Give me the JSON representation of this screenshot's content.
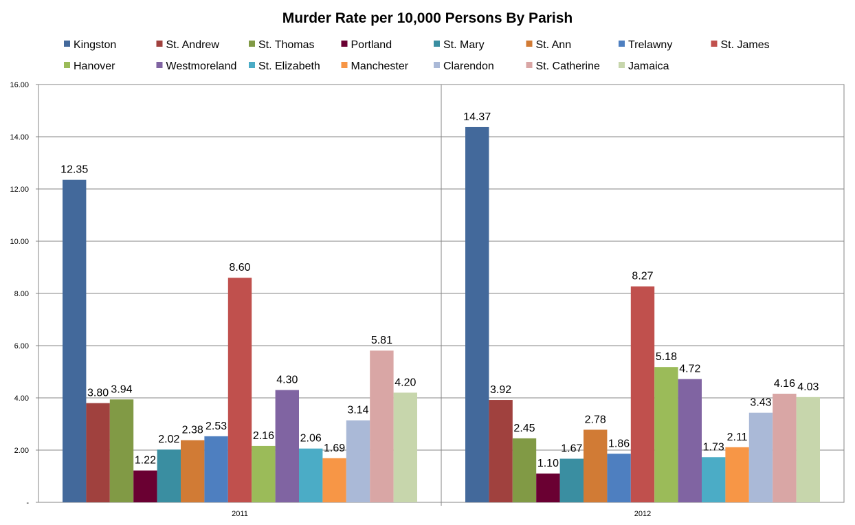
{
  "chart_data": {
    "type": "bar",
    "title": "Murder Rate per 10,000 Persons By Parish",
    "categories": [
      "2011",
      "2012"
    ],
    "ylim": [
      0,
      16
    ],
    "y_ticks": [
      0,
      2,
      4,
      6,
      8,
      10,
      12,
      14,
      16
    ],
    "y_tick_labels": [
      "-",
      "2.00",
      "4.00",
      "6.00",
      "8.00",
      "10.00",
      "12.00",
      "14.00",
      "16.00"
    ],
    "grid": true,
    "legend_position": "top",
    "xlabel": "",
    "ylabel": "",
    "series": [
      {
        "name": "Kingston",
        "color": "#43699B",
        "values": [
          12.35,
          14.37
        ],
        "labels": [
          "12.35",
          "14.37"
        ]
      },
      {
        "name": "St. Andrew",
        "color": "#A0413E",
        "values": [
          3.8,
          3.92
        ],
        "labels": [
          "3.80",
          "3.92"
        ]
      },
      {
        "name": "St. Thomas",
        "color": "#819A45",
        "values": [
          3.94,
          2.45
        ],
        "labels": [
          "3.94",
          "2.45"
        ]
      },
      {
        "name": "Portland",
        "color": "#6A0032",
        "values": [
          1.22,
          1.1
        ],
        "labels": [
          "1.22",
          "1.10"
        ]
      },
      {
        "name": "St. Mary",
        "color": "#3A8EA1",
        "values": [
          2.02,
          1.67
        ],
        "labels": [
          "2.02",
          "1.67"
        ]
      },
      {
        "name": "St. Ann",
        "color": "#D17B35",
        "values": [
          2.38,
          2.78
        ],
        "labels": [
          "2.38",
          "2.78"
        ]
      },
      {
        "name": "Trelawny",
        "color": "#4E7FC0",
        "values": [
          2.53,
          1.86
        ],
        "labels": [
          "2.53",
          "1.86"
        ]
      },
      {
        "name": "St. James",
        "color": "#C0504D",
        "values": [
          8.6,
          8.27
        ],
        "labels": [
          "8.60",
          "8.27"
        ]
      },
      {
        "name": "Hanover",
        "color": "#9BBB59",
        "values": [
          2.16,
          5.18
        ],
        "labels": [
          "2.16",
          "5.18"
        ]
      },
      {
        "name": "Westmoreland",
        "color": "#8064A2",
        "values": [
          4.3,
          4.72
        ],
        "labels": [
          "4.30",
          "4.72"
        ]
      },
      {
        "name": "St. Elizabeth",
        "color": "#4BACC6",
        "values": [
          2.06,
          1.73
        ],
        "labels": [
          "2.06",
          "1.73"
        ]
      },
      {
        "name": "Manchester",
        "color": "#F79646",
        "values": [
          1.69,
          2.11
        ],
        "labels": [
          "1.69",
          "2.11"
        ]
      },
      {
        "name": "Clarendon",
        "color": "#AAB9D7",
        "values": [
          3.14,
          3.43
        ],
        "labels": [
          "3.14",
          "3.43"
        ]
      },
      {
        "name": "St. Catherine",
        "color": "#D9A6A5",
        "values": [
          5.81,
          4.16
        ],
        "labels": [
          "5.81",
          "4.16"
        ]
      },
      {
        "name": "Jamaica",
        "color": "#C7D6AC",
        "values": [
          4.2,
          4.03
        ],
        "labels": [
          "4.20",
          "4.03"
        ]
      }
    ]
  }
}
